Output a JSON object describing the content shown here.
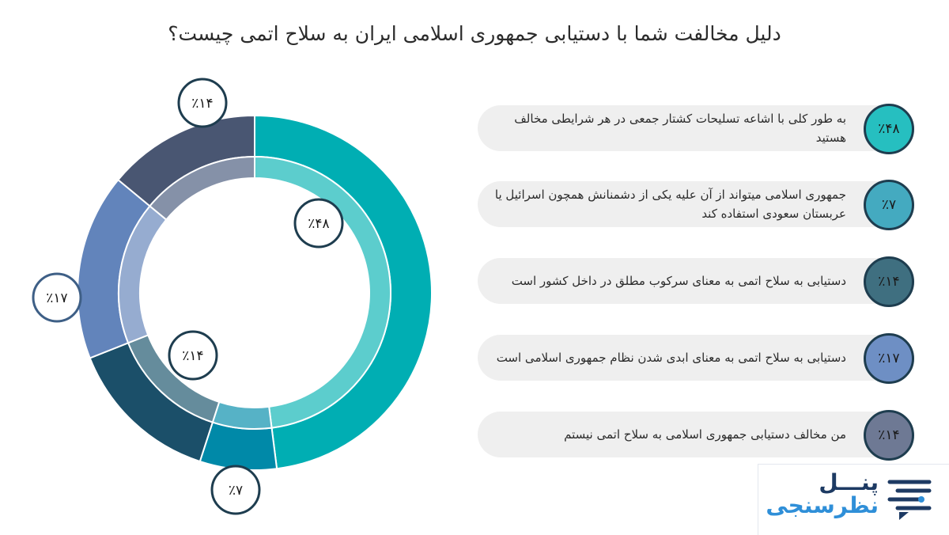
{
  "title": "دلیل مخالفت شما با دستیابی جمهوری اسلامی ایران به سلاح اتمی چیست؟",
  "chart_data": {
    "type": "pie",
    "title": "دلیل مخالفت شما با دستیابی جمهوری اسلامی ایران به سلاح اتمی چیست؟",
    "categories": [
      "به طور کلی با اشاعه تسلیحات کشتار جمعی در هر شرایطی مخالف هستید",
      "جمهوری اسلامی میتواند از آن علیه یکی از دشمنانش همچون اسرائیل یا عربستان سعودی استفاده کند",
      "دستیابی به سلاح اتمی به معنای سرکوب مطلق در داخل کشور است",
      "دستیابی به سلاح اتمی به معنای ابدی شدن نظام جمهوری اسلامی است",
      "من مخالف دستیابی جمهوری اسلامی به سلاح اتمی نیستم"
    ],
    "values": [
      48,
      7,
      14,
      17,
      14
    ],
    "value_labels": [
      "٪۴۸",
      "٪۷",
      "٪۱۴",
      "٪۱۷",
      "٪۱۴"
    ],
    "colors": [
      "#00aeb3",
      "#0089a8",
      "#1b4f69",
      "#6284bb",
      "#495672"
    ],
    "inner_colors": [
      "#5ccdcd",
      "#56b2c6",
      "#658c9c",
      "#96acd0",
      "#8591a8"
    ],
    "legend_badge_colors": [
      "#26bfc0",
      "#44aac0",
      "#3f6f80",
      "#6e8fc4",
      "#6e7994"
    ],
    "legend": "right"
  },
  "logo": {
    "line1": "پنـــل",
    "line2": "نظرسنجی",
    "icon": "chat-lines-icon"
  }
}
